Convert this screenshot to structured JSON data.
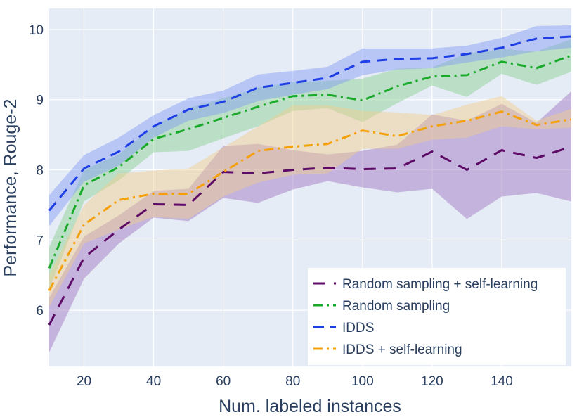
{
  "chart_data": {
    "type": "line",
    "title": "",
    "xlabel": "Num. labeled instances",
    "ylabel": "Performance, Rouge-2",
    "xlim": [
      10,
      160
    ],
    "ylim": [
      5.2,
      10.3
    ],
    "xticks": [
      20,
      40,
      60,
      80,
      100,
      120,
      140
    ],
    "xtick_labels": [
      "20",
      "40",
      "60",
      "80",
      "100",
      "120",
      "140"
    ],
    "yticks": [
      6,
      7,
      8,
      9,
      10
    ],
    "ytick_labels": [
      "6",
      "7",
      "8",
      "9",
      "10"
    ],
    "grid": true,
    "legend_position": "bottom-right",
    "x": [
      10,
      20,
      30,
      40,
      50,
      60,
      70,
      80,
      90,
      100,
      110,
      120,
      130,
      140,
      150,
      160
    ],
    "series": [
      {
        "name": "Random sampling + self-learning",
        "color": "#5c0a66",
        "band_color": "#9b6fbd",
        "dash": "long-dash",
        "values": [
          5.79,
          6.75,
          7.15,
          7.51,
          7.5,
          7.97,
          7.95,
          8.0,
          8.03,
          8.01,
          8.02,
          8.26,
          8.0,
          8.28,
          8.17,
          8.33
        ],
        "lower": [
          5.4,
          6.45,
          6.95,
          7.32,
          7.27,
          7.6,
          7.53,
          7.72,
          7.84,
          7.75,
          7.68,
          7.73,
          7.3,
          7.62,
          7.67,
          7.55
        ],
        "upper": [
          6.18,
          7.05,
          7.35,
          7.7,
          7.73,
          8.34,
          8.37,
          8.28,
          8.22,
          8.27,
          8.36,
          8.79,
          8.7,
          8.94,
          8.67,
          9.12
        ]
      },
      {
        "name": "Random sampling",
        "color": "#1aaa2a",
        "band_color": "#86d08c",
        "dash": "dash-dot",
        "values": [
          6.6,
          7.78,
          8.04,
          8.44,
          8.58,
          8.74,
          8.9,
          9.05,
          9.07,
          8.99,
          9.19,
          9.33,
          9.35,
          9.54,
          9.45,
          9.63
        ],
        "lower": [
          6.3,
          7.55,
          7.85,
          8.25,
          8.27,
          8.45,
          8.62,
          8.84,
          8.88,
          8.68,
          8.95,
          9.2,
          9.04,
          9.37,
          9.21,
          9.4
        ],
        "upper": [
          6.9,
          8.0,
          8.22,
          8.62,
          8.88,
          9.02,
          9.17,
          9.25,
          9.27,
          9.3,
          9.44,
          9.46,
          9.66,
          9.72,
          9.69,
          9.86
        ]
      },
      {
        "name": "IDDS",
        "color": "#1f3fe6",
        "band_color": "#8099f5",
        "dash": "dash",
        "values": [
          7.42,
          8.02,
          8.26,
          8.62,
          8.86,
          8.97,
          9.17,
          9.24,
          9.31,
          9.54,
          9.58,
          9.59,
          9.65,
          9.74,
          9.87,
          9.9
        ],
        "lower": [
          7.2,
          7.83,
          8.06,
          8.46,
          8.7,
          8.81,
          8.98,
          9.07,
          9.15,
          9.35,
          9.43,
          9.45,
          9.53,
          9.6,
          9.69,
          9.74
        ],
        "upper": [
          7.64,
          8.21,
          8.46,
          8.78,
          9.02,
          9.13,
          9.36,
          9.41,
          9.47,
          9.73,
          9.73,
          9.73,
          9.77,
          9.88,
          10.05,
          10.06
        ]
      },
      {
        "name": "IDDS + self-learning",
        "color": "#f5a00a",
        "band_color": "#f2ce8a",
        "dash": "dash-dot",
        "values": [
          6.28,
          7.22,
          7.57,
          7.66,
          7.66,
          7.97,
          8.27,
          8.33,
          8.37,
          8.56,
          8.48,
          8.62,
          8.7,
          8.83,
          8.64,
          8.72
        ],
        "lower": [
          6.05,
          6.95,
          7.15,
          7.33,
          7.3,
          7.62,
          7.82,
          7.93,
          7.95,
          8.3,
          8.3,
          8.43,
          8.46,
          8.62,
          8.58,
          8.6
        ],
        "upper": [
          6.5,
          7.5,
          7.95,
          7.99,
          8.02,
          8.32,
          8.62,
          8.92,
          8.92,
          8.84,
          8.82,
          8.78,
          8.93,
          9.05,
          8.7,
          8.87
        ]
      }
    ]
  }
}
